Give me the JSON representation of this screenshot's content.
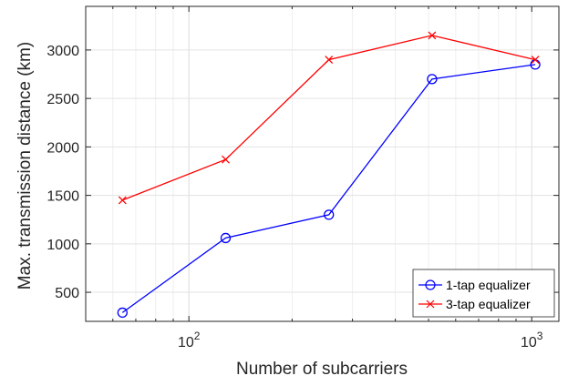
{
  "chart_data": {
    "type": "line",
    "xscale": "log",
    "xlim": [
      50,
      1200
    ],
    "ylim": [
      200,
      3450
    ],
    "x_ticks": [
      {
        "value": 100,
        "base": "10",
        "exp": "2"
      },
      {
        "value": 1000,
        "base": "10",
        "exp": "3"
      }
    ],
    "y_ticks": [
      "500",
      "1000",
      "1500",
      "2000",
      "2500",
      "3000"
    ],
    "xlabel": "Number of subcarriers",
    "ylabel": "Max. transmission distance (km)",
    "grid": true,
    "legend_position": "bottom-right",
    "series": [
      {
        "name": "1-tap equalizer",
        "color": "#0000ff",
        "marker": "circle",
        "x": [
          64,
          128,
          256,
          512,
          1024
        ],
        "y": [
          290,
          1060,
          1300,
          2700,
          2850
        ]
      },
      {
        "name": "3-tap equalizer",
        "color": "#ff0000",
        "marker": "x",
        "x": [
          64,
          128,
          256,
          512,
          1024
        ],
        "y": [
          1450,
          1870,
          2900,
          3150,
          2900
        ]
      }
    ]
  }
}
